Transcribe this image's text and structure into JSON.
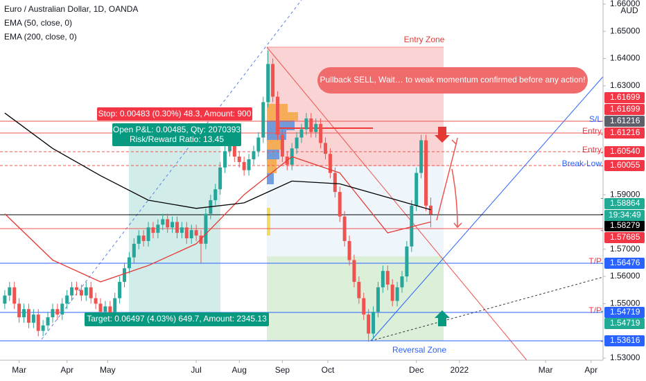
{
  "chart_data": {
    "type": "candlestick",
    "title": "Euro / Australian Dollar, 1D, OANDA",
    "currency": "AUD",
    "up_color": "#26a69a",
    "down_color": "#ef5350",
    "x": [
      0,
      1,
      2,
      3,
      4,
      5,
      6,
      7,
      8,
      9,
      10,
      11,
      12,
      13,
      14,
      15,
      16,
      17,
      18,
      19,
      20,
      21,
      22,
      23,
      24,
      25,
      26,
      27,
      28,
      29,
      30,
      31,
      32,
      33,
      34,
      35,
      36,
      37,
      38,
      39,
      40,
      41,
      42,
      43,
      44,
      45,
      46,
      47,
      48,
      49,
      50,
      51,
      52,
      53,
      54,
      55,
      56,
      57,
      58,
      59,
      60,
      61,
      62,
      63,
      64,
      65,
      66,
      67,
      68,
      69,
      70,
      71,
      72,
      73,
      74,
      75,
      76,
      77,
      78,
      79,
      80,
      81,
      82,
      83,
      84,
      85,
      86,
      87,
      88,
      89
    ],
    "open": [
      1.55,
      1.553,
      1.556,
      1.55,
      1.545,
      1.548,
      1.543,
      1.546,
      1.54,
      1.542,
      1.545,
      1.548,
      1.546,
      1.55,
      1.553,
      1.556,
      1.555,
      1.553,
      1.556,
      1.552,
      1.55,
      1.547,
      1.549,
      1.546,
      1.552,
      1.558,
      1.563,
      1.567,
      1.572,
      1.575,
      1.573,
      1.578,
      1.576,
      1.579,
      1.581,
      1.578,
      1.58,
      1.576,
      1.578,
      1.574,
      1.577,
      1.575,
      1.572,
      1.583,
      1.588,
      1.592,
      1.6,
      1.606,
      1.609,
      1.604,
      1.602,
      1.599,
      1.603,
      1.606,
      1.611,
      1.624,
      1.638,
      1.626,
      1.612,
      1.604,
      1.601,
      1.607,
      1.611,
      1.614,
      1.618,
      1.613,
      1.616,
      1.609,
      1.605,
      1.598,
      1.591,
      1.582,
      1.573,
      1.566,
      1.558,
      1.552,
      1.546,
      1.539,
      1.547,
      1.556,
      1.562,
      1.557,
      1.551,
      1.556,
      1.56,
      1.571,
      1.586,
      1.598,
      1.61,
      1.586
    ],
    "high": [
      1.555,
      1.558,
      1.558,
      1.552,
      1.55,
      1.55,
      1.548,
      1.548,
      1.544,
      1.547,
      1.55,
      1.55,
      1.552,
      1.555,
      1.558,
      1.558,
      1.557,
      1.558,
      1.558,
      1.554,
      1.552,
      1.551,
      1.551,
      1.554,
      1.56,
      1.565,
      1.569,
      1.574,
      1.577,
      1.577,
      1.58,
      1.58,
      1.581,
      1.583,
      1.583,
      1.582,
      1.582,
      1.58,
      1.58,
      1.579,
      1.579,
      1.577,
      1.585,
      1.59,
      1.594,
      1.602,
      1.608,
      1.611,
      1.611,
      1.606,
      1.604,
      1.605,
      1.608,
      1.613,
      1.626,
      1.643,
      1.64,
      1.628,
      1.614,
      1.606,
      1.609,
      1.613,
      1.616,
      1.62,
      1.62,
      1.618,
      1.618,
      1.611,
      1.607,
      1.6,
      1.593,
      1.584,
      1.575,
      1.568,
      1.56,
      1.554,
      1.548,
      1.549,
      1.558,
      1.564,
      1.564,
      1.559,
      1.558,
      1.562,
      1.573,
      1.588,
      1.6,
      1.612,
      1.612,
      1.589
    ],
    "low": [
      1.548,
      1.551,
      1.548,
      1.543,
      1.543,
      1.541,
      1.541,
      1.538,
      1.538,
      1.54,
      1.543,
      1.544,
      1.544,
      1.548,
      1.551,
      1.553,
      1.551,
      1.551,
      1.55,
      1.548,
      1.545,
      1.545,
      1.544,
      1.544,
      1.55,
      1.556,
      1.561,
      1.565,
      1.57,
      1.571,
      1.571,
      1.574,
      1.574,
      1.577,
      1.576,
      1.576,
      1.574,
      1.574,
      1.572,
      1.572,
      1.573,
      1.565,
      1.57,
      1.581,
      1.586,
      1.59,
      1.598,
      1.604,
      1.602,
      1.6,
      1.597,
      1.597,
      1.601,
      1.604,
      1.609,
      1.622,
      1.624,
      1.61,
      1.602,
      1.599,
      1.599,
      1.605,
      1.609,
      1.612,
      1.611,
      1.611,
      1.607,
      1.603,
      1.596,
      1.589,
      1.58,
      1.571,
      1.564,
      1.556,
      1.55,
      1.544,
      1.536,
      1.537,
      1.545,
      1.554,
      1.555,
      1.549,
      1.549,
      1.554,
      1.558,
      1.569,
      1.584,
      1.596,
      1.584,
      1.578
    ],
    "close": [
      1.553,
      1.556,
      1.55,
      1.545,
      1.548,
      1.543,
      1.546,
      1.54,
      1.542,
      1.545,
      1.548,
      1.546,
      1.55,
      1.553,
      1.556,
      1.555,
      1.553,
      1.556,
      1.552,
      1.55,
      1.547,
      1.549,
      1.546,
      1.552,
      1.558,
      1.563,
      1.567,
      1.572,
      1.575,
      1.573,
      1.578,
      1.576,
      1.579,
      1.581,
      1.578,
      1.58,
      1.576,
      1.578,
      1.574,
      1.577,
      1.575,
      1.572,
      1.583,
      1.588,
      1.592,
      1.6,
      1.606,
      1.609,
      1.604,
      1.602,
      1.599,
      1.603,
      1.606,
      1.611,
      1.624,
      1.638,
      1.626,
      1.612,
      1.604,
      1.601,
      1.607,
      1.611,
      1.614,
      1.618,
      1.613,
      1.616,
      1.609,
      1.605,
      1.598,
      1.591,
      1.582,
      1.573,
      1.566,
      1.558,
      1.552,
      1.546,
      1.539,
      1.547,
      1.556,
      1.562,
      1.557,
      1.551,
      1.556,
      1.56,
      1.571,
      1.586,
      1.598,
      1.61,
      1.586,
      1.5828
    ],
    "series": [
      {
        "name": "EMA (50, close, 0)",
        "color": "#e53935",
        "x": [
          0,
          10,
          20,
          30,
          40,
          50,
          60,
          70,
          80,
          89
        ],
        "values": [
          1.583,
          1.566,
          1.558,
          1.564,
          1.572,
          1.59,
          1.604,
          1.598,
          1.576,
          1.58
        ]
      },
      {
        "name": "EMA (200, close, 0)",
        "color": "#000000",
        "x": [
          0,
          10,
          20,
          30,
          40,
          50,
          60,
          70,
          80,
          89
        ],
        "values": [
          1.62,
          1.607,
          1.597,
          1.588,
          1.585,
          1.587,
          1.595,
          1.594,
          1.589,
          1.5845
        ]
      }
    ],
    "xlim": [
      -1,
      125
    ],
    "xticks": [
      {
        "value": 3,
        "label": "Mar"
      },
      {
        "value": 13,
        "label": "Apr"
      },
      {
        "value": 21.5,
        "label": "May"
      },
      {
        "value": 40,
        "label": "Jul"
      },
      {
        "value": 49,
        "label": "Aug"
      },
      {
        "value": 58,
        "label": "Sep"
      },
      {
        "value": 67.5,
        "label": "Oct"
      },
      {
        "value": 86,
        "label": "Dec"
      },
      {
        "value": 95,
        "label": "2022"
      },
      {
        "value": 113,
        "label": "Mar"
      },
      {
        "value": 122.5,
        "label": "Apr"
      }
    ],
    "ylim": [
      1.5216,
      1.6615
    ],
    "yticks": [
      {
        "value": 1.53,
        "label": "1.53000"
      },
      {
        "value": 1.55,
        "label": "1.55000"
      },
      {
        "value": 1.56,
        "label": "1.56000"
      },
      {
        "value": 1.57,
        "label": "1.57000"
      },
      {
        "value": 1.59,
        "label": "1.59000"
      },
      {
        "value": 1.63,
        "label": "1.63000"
      },
      {
        "value": 1.64,
        "label": "1.64000"
      },
      {
        "value": 1.65,
        "label": "1.65000"
      },
      {
        "value": 1.66,
        "label": "1.66000"
      }
    ],
    "price_labels": [
      {
        "value": 1.61699,
        "label": "1.61699",
        "color": "#f23645"
      },
      {
        "value": 1.61699,
        "label": "1.61699",
        "color": "#f23645"
      },
      {
        "value": 1.61216,
        "label": "1.61216",
        "color": "#5d606b"
      },
      {
        "value": 1.61216,
        "label": "1.61216",
        "color": "#f23645"
      },
      {
        "value": 1.6054,
        "label": "1.60540",
        "color": "#f23645"
      },
      {
        "value": 1.60055,
        "label": "1.60055",
        "color": "#f23645"
      },
      {
        "value": 1.58864,
        "label": "1.58864",
        "color": "#22ab94"
      },
      {
        "value": 1.58279,
        "label": "1.58279",
        "color": "#000000"
      },
      {
        "value": 1.57685,
        "label": "1.57685",
        "color": "#f23645"
      },
      {
        "value": 1.56476,
        "label": "1.56476",
        "color": "#2962ff"
      },
      {
        "value": 1.54719,
        "label": "1.54719",
        "color": "#2962ff"
      },
      {
        "value": 1.54719,
        "label": "1.54719",
        "color": "#22ab94"
      },
      {
        "value": 1.53616,
        "label": "1.53616",
        "color": "#2962ff"
      }
    ],
    "countdown": "19:34:49",
    "line_labels": [
      {
        "text": "S/L",
        "color": "#2962ff"
      },
      {
        "text": "Entry",
        "color": "#f23645"
      },
      {
        "text": "Entry",
        "color": "#f23645"
      },
      {
        "text": "Break-Low",
        "color": "#2962ff"
      },
      {
        "text": "T/P",
        "color": "#f23645"
      },
      {
        "text": "T/P",
        "color": "#f23645"
      }
    ],
    "annotations": {
      "entry_zone": "Entry Zone",
      "reversal_zone": "Reversal Zone",
      "note": "Pullback SELL, Wait… to weak momentum confirmed before any action!",
      "stop": "Stop: 0.00483 (0.30%) 48.3, Amount: 900",
      "open_pnl": "Open P&L: 0.00485, Qty: 2070393",
      "risk_reward": "Risk/Reward Ratio: 13.45",
      "target": "Target: 0.06497 (4.03%) 649.7, Amount: 2345.13"
    }
  }
}
